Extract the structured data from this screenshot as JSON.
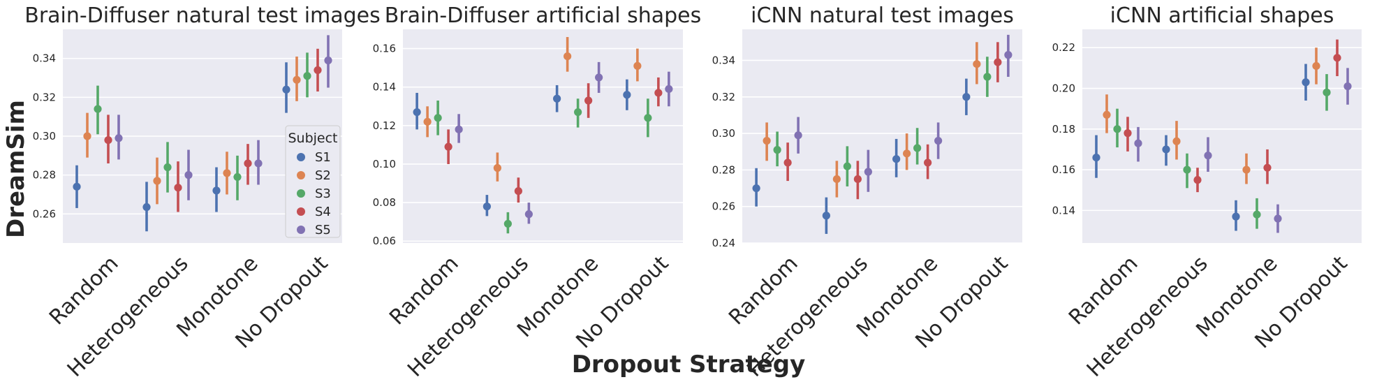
{
  "ylabel": "DreamSim",
  "xlabel": "Dropout Strategy",
  "legend": {
    "title": "Subject",
    "placement": "right, inside first panel"
  },
  "colors": {
    "S1": "#4c72b0",
    "S2": "#dd8452",
    "S3": "#55a868",
    "S4": "#c44e52",
    "S5": "#8172b3",
    "background": "#eaeaf2",
    "grid": "#ffffff"
  },
  "chart_data": [
    {
      "type": "point",
      "title": "Brain-Diffuser natural test images",
      "categories": [
        "Random",
        "Heterogeneous",
        "Monotone",
        "No Dropout"
      ],
      "ylim": [
        0.245,
        0.355
      ],
      "yticks": [
        "0.26",
        "0.28",
        "0.30",
        "0.32",
        "0.34"
      ],
      "grid": true,
      "series": [
        {
          "name": "S1",
          "values": [
            0.274,
            0.2635,
            0.272,
            0.324
          ],
          "lower": [
            0.263,
            0.251,
            0.261,
            0.312
          ],
          "upper": [
            0.285,
            0.2765,
            0.284,
            0.338
          ]
        },
        {
          "name": "S2",
          "values": [
            0.3,
            0.277,
            0.281,
            0.329
          ],
          "lower": [
            0.289,
            0.265,
            0.27,
            0.318
          ],
          "upper": [
            0.312,
            0.289,
            0.292,
            0.341
          ]
        },
        {
          "name": "S3",
          "values": [
            0.314,
            0.284,
            0.279,
            0.331
          ],
          "lower": [
            0.301,
            0.271,
            0.267,
            0.32
          ],
          "upper": [
            0.326,
            0.297,
            0.29,
            0.343
          ]
        },
        {
          "name": "S4",
          "values": [
            0.298,
            0.2735,
            0.286,
            0.334
          ],
          "lower": [
            0.286,
            0.261,
            0.275,
            0.323
          ],
          "upper": [
            0.311,
            0.287,
            0.296,
            0.345
          ]
        },
        {
          "name": "S5",
          "values": [
            0.299,
            0.28,
            0.286,
            0.339
          ],
          "lower": [
            0.288,
            0.267,
            0.275,
            0.325
          ],
          "upper": [
            0.311,
            0.293,
            0.298,
            0.352
          ]
        }
      ]
    },
    {
      "type": "point",
      "title": "Brain-Diffuser artificial shapes",
      "categories": [
        "Random",
        "Heterogeneous",
        "Monotone",
        "No Dropout"
      ],
      "ylim": [
        0.059,
        0.17
      ],
      "yticks": [
        "0.06",
        "0.08",
        "0.10",
        "0.12",
        "0.14",
        "0.16"
      ],
      "grid": true,
      "series": [
        {
          "name": "S1",
          "values": [
            0.127,
            0.078,
            0.134,
            0.136
          ],
          "lower": [
            0.118,
            0.073,
            0.127,
            0.128
          ],
          "upper": [
            0.137,
            0.084,
            0.141,
            0.144
          ]
        },
        {
          "name": "S2",
          "values": [
            0.122,
            0.098,
            0.156,
            0.151
          ],
          "lower": [
            0.114,
            0.091,
            0.148,
            0.143
          ],
          "upper": [
            0.13,
            0.106,
            0.166,
            0.16
          ]
        },
        {
          "name": "S3",
          "values": [
            0.124,
            0.069,
            0.127,
            0.124
          ],
          "lower": [
            0.115,
            0.064,
            0.119,
            0.114
          ],
          "upper": [
            0.133,
            0.075,
            0.134,
            0.134
          ]
        },
        {
          "name": "S4",
          "values": [
            0.109,
            0.086,
            0.133,
            0.137
          ],
          "lower": [
            0.1,
            0.08,
            0.124,
            0.13
          ],
          "upper": [
            0.118,
            0.093,
            0.142,
            0.145
          ]
        },
        {
          "name": "S5",
          "values": [
            0.118,
            0.074,
            0.145,
            0.139
          ],
          "lower": [
            0.111,
            0.069,
            0.137,
            0.13
          ],
          "upper": [
            0.126,
            0.08,
            0.153,
            0.148
          ]
        }
      ]
    },
    {
      "type": "point",
      "title": "iCNN natural test images",
      "categories": [
        "Random",
        "Heterogeneous",
        "Monotone",
        "No Dropout"
      ],
      "ylim": [
        0.24,
        0.357
      ],
      "yticks": [
        "0.24",
        "0.26",
        "0.28",
        "0.30",
        "0.32",
        "0.34"
      ],
      "grid": true,
      "series": [
        {
          "name": "S1",
          "values": [
            0.27,
            0.255,
            0.286,
            0.32
          ],
          "lower": [
            0.26,
            0.245,
            0.276,
            0.31
          ],
          "upper": [
            0.281,
            0.265,
            0.297,
            0.33
          ]
        },
        {
          "name": "S2",
          "values": [
            0.296,
            0.275,
            0.289,
            0.338
          ],
          "lower": [
            0.285,
            0.265,
            0.28,
            0.327
          ],
          "upper": [
            0.306,
            0.285,
            0.3,
            0.35
          ]
        },
        {
          "name": "S3",
          "values": [
            0.291,
            0.282,
            0.292,
            0.331
          ],
          "lower": [
            0.282,
            0.271,
            0.283,
            0.32
          ],
          "upper": [
            0.301,
            0.293,
            0.303,
            0.342
          ]
        },
        {
          "name": "S4",
          "values": [
            0.284,
            0.275,
            0.284,
            0.339
          ],
          "lower": [
            0.274,
            0.264,
            0.275,
            0.328
          ],
          "upper": [
            0.295,
            0.285,
            0.294,
            0.35
          ]
        },
        {
          "name": "S5",
          "values": [
            0.299,
            0.279,
            0.296,
            0.343
          ],
          "lower": [
            0.289,
            0.268,
            0.286,
            0.331
          ],
          "upper": [
            0.309,
            0.291,
            0.306,
            0.354
          ]
        }
      ]
    },
    {
      "type": "point",
      "title": "iCNN artificial shapes",
      "categories": [
        "Random",
        "Heterogeneous",
        "Monotone",
        "No Dropout"
      ],
      "ylim": [
        0.124,
        0.229
      ],
      "yticks": [
        "0.14",
        "0.16",
        "0.18",
        "0.20",
        "0.22"
      ],
      "grid": true,
      "series": [
        {
          "name": "S1",
          "values": [
            0.166,
            0.17,
            0.137,
            0.203
          ],
          "lower": [
            0.156,
            0.162,
            0.13,
            0.194
          ],
          "upper": [
            0.177,
            0.177,
            0.145,
            0.212
          ]
        },
        {
          "name": "S2",
          "values": [
            0.187,
            0.174,
            0.16,
            0.211
          ],
          "lower": [
            0.178,
            0.165,
            0.153,
            0.202
          ],
          "upper": [
            0.197,
            0.184,
            0.168,
            0.22
          ]
        },
        {
          "name": "S3",
          "values": [
            0.18,
            0.16,
            0.138,
            0.198
          ],
          "lower": [
            0.171,
            0.151,
            0.131,
            0.189
          ],
          "upper": [
            0.19,
            0.168,
            0.146,
            0.207
          ]
        },
        {
          "name": "S4",
          "values": [
            0.178,
            0.155,
            0.161,
            0.215
          ],
          "lower": [
            0.169,
            0.149,
            0.153,
            0.206
          ],
          "upper": [
            0.186,
            0.161,
            0.17,
            0.224
          ]
        },
        {
          "name": "S5",
          "values": [
            0.173,
            0.167,
            0.136,
            0.201
          ],
          "lower": [
            0.164,
            0.159,
            0.129,
            0.192
          ],
          "upper": [
            0.181,
            0.176,
            0.143,
            0.21
          ]
        }
      ]
    }
  ]
}
